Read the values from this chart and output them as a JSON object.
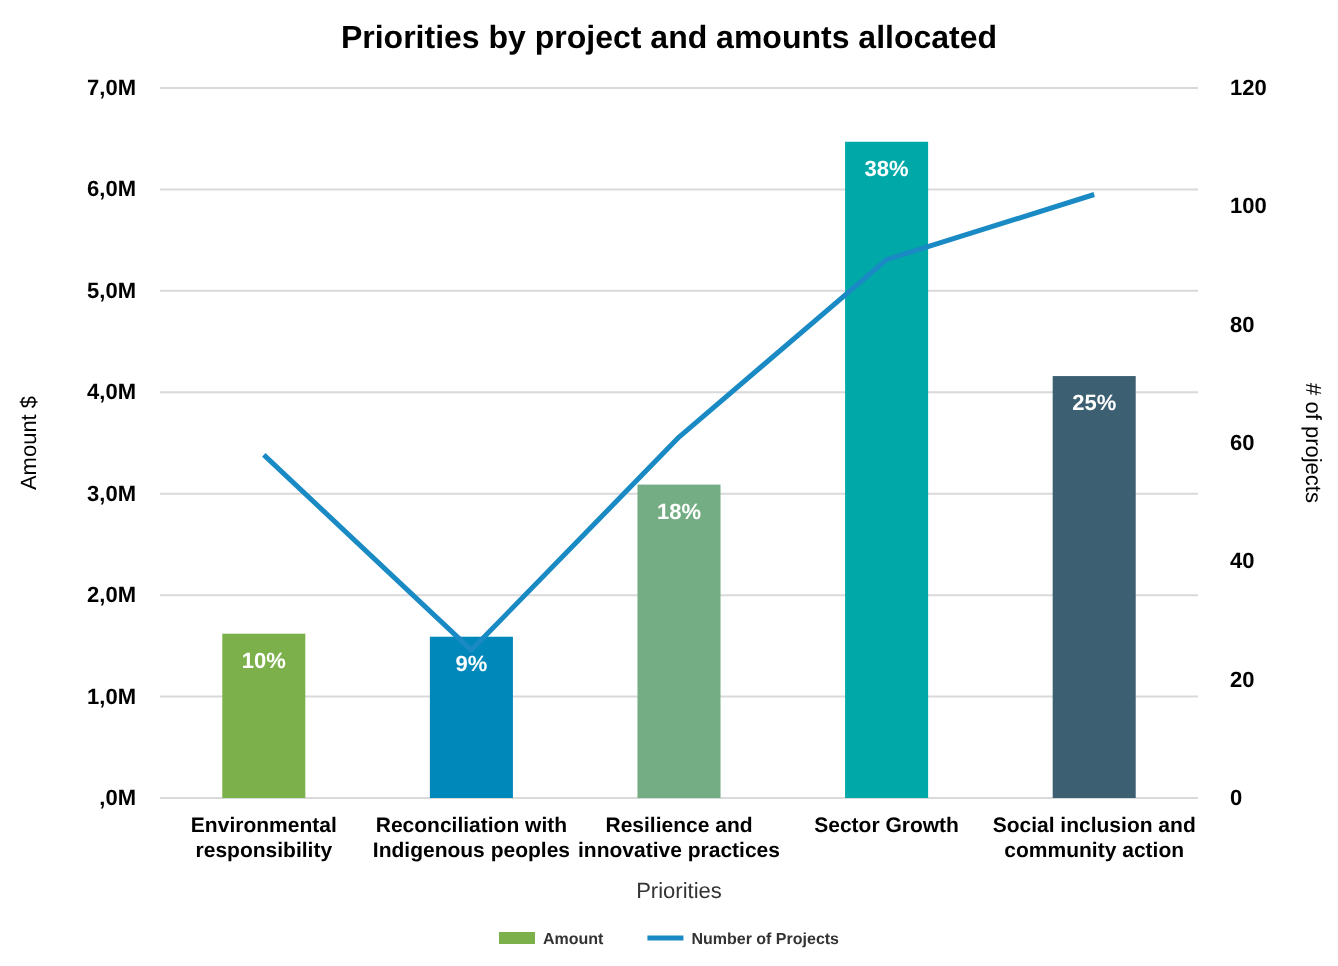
{
  "chart_data": {
    "type": "bar",
    "title": "Priorities by project and amounts allocated",
    "xlabel": "Priorities",
    "ylabel": "Amount $",
    "y2label": "# of projects",
    "categories": [
      "Environmental responsibility",
      "Reconciliation with Indigenous peoples",
      "Resilience and innovative practices",
      "Sector Growth",
      "Social inclusion and community action"
    ],
    "series": [
      {
        "name": "Amount",
        "color": "#7cb04a",
        "colors": [
          "#7cb04a",
          "#0088ba",
          "#74ad84",
          "#00a8a8",
          "#3c6072"
        ],
        "values": [
          1620000,
          1590000,
          3090000,
          6470000,
          4160000
        ]
      },
      {
        "name": "Number of Projects",
        "type": "line",
        "axis": "y2",
        "color": "#1a8ac4",
        "values": [
          58,
          25,
          61,
          91,
          102
        ]
      }
    ],
    "ylim": [
      0,
      7000000
    ],
    "yticks": [
      {
        "value": 0,
        "label": ",0M"
      },
      {
        "value": 1000000,
        "label": "1,0M"
      },
      {
        "value": 2000000,
        "label": "2,0M"
      },
      {
        "value": 3000000,
        "label": "3,0M"
      },
      {
        "value": 4000000,
        "label": "4,0M"
      },
      {
        "value": 5000000,
        "label": "5,0M"
      },
      {
        "value": 6000000,
        "label": "6,0M"
      },
      {
        "value": 7000000,
        "label": "7,0M"
      }
    ],
    "y2lim": [
      0,
      120
    ],
    "y2ticks": [
      0,
      20,
      40,
      60,
      80,
      100,
      120
    ],
    "annotations": [
      {
        "text": "10%",
        "x": "Environmental responsibility",
        "y": 1620000
      },
      {
        "text": "9%",
        "x": "Reconciliation with Indigenous peoples",
        "y": 1590000
      },
      {
        "text": "18%",
        "x": "Resilience and innovative practices",
        "y": 3090000
      },
      {
        "text": "38%",
        "x": "Sector Growth",
        "y": 6470000
      },
      {
        "text": "25%",
        "x": "Social inclusion and community action",
        "y": 4160000
      }
    ],
    "grid": "y",
    "legend": "bottom",
    "marker": "none",
    "line_style": "solid"
  }
}
